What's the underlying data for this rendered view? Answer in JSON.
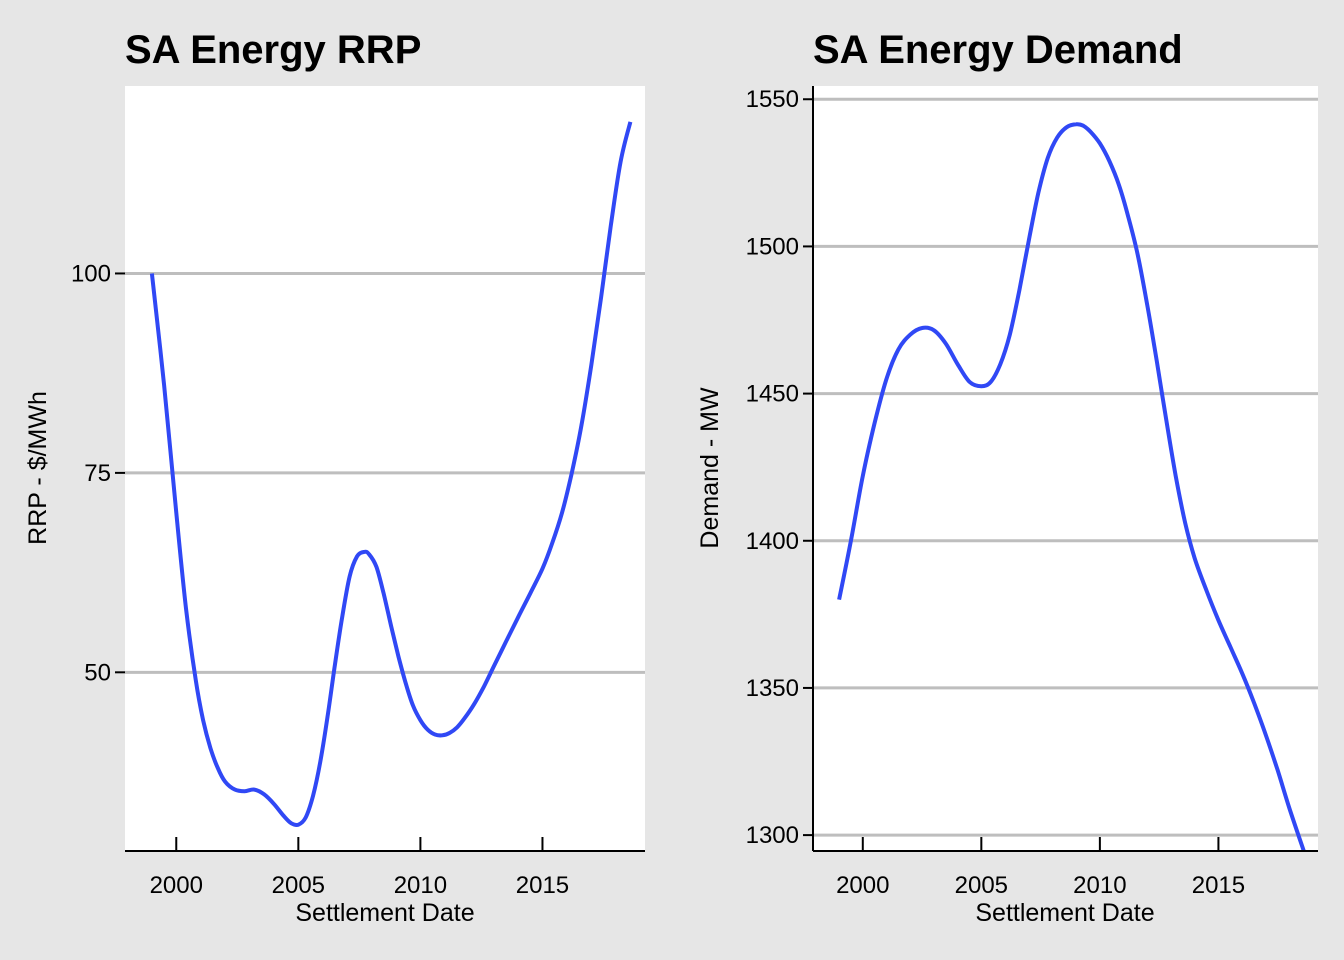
{
  "chart_data": [
    {
      "type": "line",
      "title": "SA Energy RRP",
      "xlabel": "Settlement Date",
      "ylabel": "RRP - $/MWh",
      "xlim": [
        1997.9,
        2019.2
      ],
      "ylim": [
        27.6,
        123.5
      ],
      "x_ticks": [
        2000,
        2005,
        2010,
        2015
      ],
      "y_ticks": [
        50,
        75,
        100
      ],
      "grid": "horizontal",
      "colors": {
        "line": "#3048f5",
        "grid": "#bebebe",
        "panel": "#ffffff",
        "background": "#e6e6e6"
      },
      "series": [
        {
          "x": [
            1999.0,
            1999.5,
            2000.0,
            2000.4,
            2000.8,
            2001.1,
            2001.4,
            2001.7,
            2002.0,
            2002.4,
            2002.8,
            2003.2,
            2003.6,
            2004.0,
            2004.4,
            2004.7,
            2005.0,
            2005.3,
            2005.6,
            2005.9,
            2006.2,
            2006.5,
            2006.8,
            2007.1,
            2007.4,
            2007.7,
            2007.9,
            2008.2,
            2008.5,
            2008.8,
            2009.1,
            2009.4,
            2009.7,
            2010.0,
            2010.3,
            2010.6,
            2010.9,
            2011.2,
            2011.5,
            2011.8,
            2012.2,
            2012.6,
            2013.0,
            2013.5,
            2014.0,
            2014.5,
            2015.0,
            2015.4,
            2015.8,
            2016.2,
            2016.6,
            2017.0,
            2017.4,
            2017.8,
            2018.2,
            2018.6
          ],
          "y": [
            100.0,
            86.0,
            70.0,
            58.0,
            49.0,
            44.0,
            40.5,
            38.0,
            36.3,
            35.3,
            35.1,
            35.3,
            34.7,
            33.5,
            32.0,
            31.1,
            30.9,
            31.8,
            34.5,
            38.8,
            44.5,
            51.0,
            57.0,
            62.0,
            64.5,
            65.1,
            64.8,
            63.2,
            59.8,
            55.8,
            52.0,
            48.6,
            45.8,
            44.0,
            42.8,
            42.2,
            42.1,
            42.4,
            43.1,
            44.2,
            46.0,
            48.2,
            50.7,
            53.8,
            56.9,
            59.9,
            63.0,
            66.2,
            70.0,
            75.0,
            81.0,
            88.5,
            97.0,
            106.0,
            114.0,
            119.0
          ]
        }
      ]
    },
    {
      "type": "line",
      "title": "SA Energy Demand",
      "xlabel": "Settlement Date",
      "ylabel": "Demand - MW",
      "xlim": [
        1997.9,
        2019.2
      ],
      "ylim": [
        1294.6,
        1554.5
      ],
      "x_ticks": [
        2000,
        2005,
        2010,
        2015
      ],
      "y_ticks": [
        1300,
        1350,
        1400,
        1450,
        1500,
        1550
      ],
      "grid": "horizontal",
      "colors": {
        "line": "#3048f5",
        "grid": "#bebebe",
        "panel": "#ffffff",
        "background": "#e6e6e6"
      },
      "series": [
        {
          "x": [
            1999.0,
            1999.5,
            2000.0,
            2000.5,
            2001.0,
            2001.5,
            2002.0,
            2002.5,
            2003.0,
            2003.5,
            2004.0,
            2004.5,
            2005.0,
            2005.4,
            2005.8,
            2006.2,
            2006.6,
            2007.0,
            2007.4,
            2007.8,
            2008.2,
            2008.6,
            2009.0,
            2009.3,
            2009.6,
            2010.0,
            2010.4,
            2010.8,
            2011.2,
            2011.6,
            2012.0,
            2012.4,
            2012.8,
            2013.2,
            2013.6,
            2014.0,
            2014.5,
            2015.0,
            2015.5,
            2016.0,
            2016.5,
            2017.0,
            2017.5,
            2018.0,
            2018.6
          ],
          "y": [
            1380,
            1400,
            1422,
            1440,
            1455,
            1465,
            1470,
            1472.3,
            1471.5,
            1467,
            1460,
            1454,
            1452.5,
            1454,
            1460,
            1470,
            1485,
            1502,
            1518,
            1530,
            1537,
            1540.5,
            1541.5,
            1541,
            1539,
            1535,
            1529,
            1521,
            1510,
            1497,
            1480,
            1461,
            1441,
            1422,
            1406,
            1394,
            1383,
            1373,
            1364,
            1355,
            1345,
            1334,
            1322,
            1309,
            1294.6
          ]
        }
      ]
    }
  ]
}
